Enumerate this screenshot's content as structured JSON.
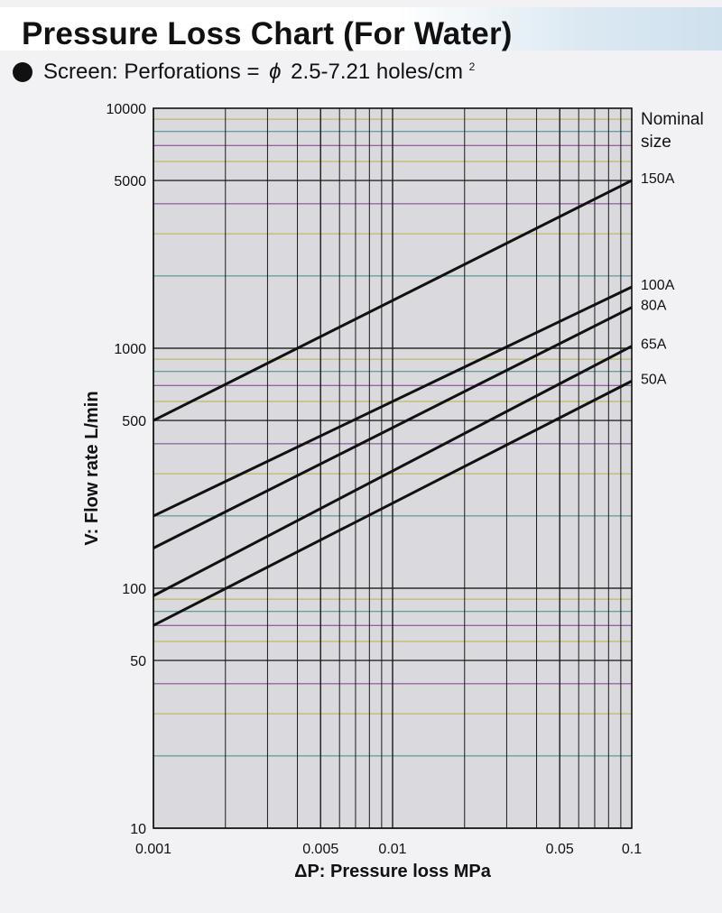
{
  "header": {
    "title": "Pressure Loss Chart (For Water)",
    "subtitle_prefix": "Screen: Perforations = ",
    "subtitle_phi": "ϕ",
    "subtitle_range": " 2.5-7.21 holes/cm",
    "subtitle_sup": "2"
  },
  "colors": {
    "background": "#f2f2f5",
    "plot_background": "#d9d9de",
    "grid_vertical": "#1a1a1a",
    "grid_h_yellow": "#b8b24a",
    "grid_h_purple": "#7a3f8c",
    "grid_h_teal": "#3f8a8a",
    "series_line": "#111111"
  },
  "chart_data": {
    "type": "line",
    "x_scale": "log",
    "y_scale": "log",
    "xlim": [
      0.001,
      0.1
    ],
    "ylim": [
      10,
      10000
    ],
    "xlabel": "ΔP: Pressure loss MPa",
    "ylabel": "V: Flow rate L/min",
    "x_ticks": [
      {
        "value": 0.001,
        "label": "0.001"
      },
      {
        "value": 0.005,
        "label": "0.005"
      },
      {
        "value": 0.01,
        "label": "0.01"
      },
      {
        "value": 0.05,
        "label": "0.05"
      },
      {
        "value": 0.1,
        "label": "0.1"
      }
    ],
    "y_ticks": [
      {
        "value": 10,
        "label": "10"
      },
      {
        "value": 50,
        "label": "50"
      },
      {
        "value": 100,
        "label": "100"
      },
      {
        "value": 500,
        "label": "500"
      },
      {
        "value": 1000,
        "label": "1000"
      },
      {
        "value": 5000,
        "label": "5000"
      },
      {
        "value": 10000,
        "label": "10000"
      }
    ],
    "legend_title": [
      "Nominal",
      "size"
    ],
    "grid": true,
    "series": [
      {
        "name": "150A",
        "x": [
          0.001,
          0.1
        ],
        "y": [
          500,
          5000
        ]
      },
      {
        "name": "100A",
        "x": [
          0.001,
          0.1
        ],
        "y": [
          200,
          1800
        ]
      },
      {
        "name": "80A",
        "x": [
          0.001,
          0.1
        ],
        "y": [
          147,
          1480
        ]
      },
      {
        "name": "65A",
        "x": [
          0.001,
          0.1
        ],
        "y": [
          93,
          1020
        ]
      },
      {
        "name": "50A",
        "x": [
          0.001,
          0.1
        ],
        "y": [
          70,
          730
        ]
      }
    ]
  }
}
